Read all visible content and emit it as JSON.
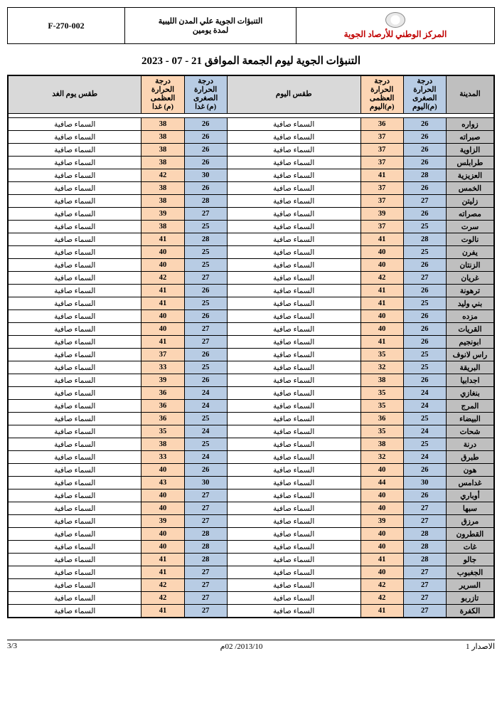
{
  "header": {
    "org_name": "المركز الوطني للأرصاد الجوية",
    "subtitle_line1": "التنبؤات الجوية علي المدن الليبية",
    "subtitle_line2": "لمدة يومين",
    "form_code": "F-270-002"
  },
  "title": "التنبؤات الجوية ليوم الجمعة  الموافق 21 - 07 - 2023",
  "columns": {
    "city": "المدينة",
    "min_today_l1": "درجة",
    "min_today_l2": "الحرارة",
    "min_today_l3": "الصغرى",
    "min_today_l4": "(م)اليوم",
    "max_today_l1": "درجة",
    "max_today_l2": "الحرارة",
    "max_today_l3": "العظمى",
    "max_today_l4": "(م)اليوم",
    "wx_today": "طقس اليوم",
    "min_tom_l1": "درجة",
    "min_tom_l2": "الحرارة",
    "min_tom_l3": "الصغرى",
    "min_tom_l4": "(م) غدا",
    "max_tom_l1": "درجة",
    "max_tom_l2": "الحرارة",
    "max_tom_l3": "العظمى",
    "max_tom_l4": "(م) غدا",
    "wx_tom": "طقس يوم الغد"
  },
  "wx_clear": "السماء صافية",
  "rows": [
    {
      "city": "زواره",
      "min_t": 26,
      "max_t": 36,
      "min_m": 26,
      "max_m": 38
    },
    {
      "city": "صبراته",
      "min_t": 26,
      "max_t": 37,
      "min_m": 26,
      "max_m": 38
    },
    {
      "city": "الزاوية",
      "min_t": 26,
      "max_t": 37,
      "min_m": 26,
      "max_m": 38
    },
    {
      "city": "طرابلس",
      "min_t": 26,
      "max_t": 37,
      "min_m": 26,
      "max_m": 38
    },
    {
      "city": "العزيزية",
      "min_t": 28,
      "max_t": 41,
      "min_m": 30,
      "max_m": 42
    },
    {
      "city": "الخمس",
      "min_t": 26,
      "max_t": 37,
      "min_m": 26,
      "max_m": 38
    },
    {
      "city": "زليتن",
      "min_t": 27,
      "max_t": 37,
      "min_m": 28,
      "max_m": 38
    },
    {
      "city": "مصراته",
      "min_t": 26,
      "max_t": 39,
      "min_m": 27,
      "max_m": 39
    },
    {
      "city": "سرت",
      "min_t": 25,
      "max_t": 37,
      "min_m": 25,
      "max_m": 38
    },
    {
      "city": "نالوت",
      "min_t": 28,
      "max_t": 41,
      "min_m": 28,
      "max_m": 41
    },
    {
      "city": "يفرن",
      "min_t": 25,
      "max_t": 40,
      "min_m": 25,
      "max_m": 40
    },
    {
      "city": "الزنتان",
      "min_t": 26,
      "max_t": 40,
      "min_m": 25,
      "max_m": 40
    },
    {
      "city": "غريان",
      "min_t": 27,
      "max_t": 42,
      "min_m": 27,
      "max_m": 42
    },
    {
      "city": "ترهونة",
      "min_t": 26,
      "max_t": 41,
      "min_m": 26,
      "max_m": 41
    },
    {
      "city": "بني وليد",
      "min_t": 25,
      "max_t": 41,
      "min_m": 25,
      "max_m": 41
    },
    {
      "city": "مزده",
      "min_t": 26,
      "max_t": 40,
      "min_m": 26,
      "max_m": 40
    },
    {
      "city": "القريات",
      "min_t": 26,
      "max_t": 40,
      "min_m": 27,
      "max_m": 40
    },
    {
      "city": "ابونجيم",
      "min_t": 26,
      "max_t": 41,
      "min_m": 27,
      "max_m": 41
    },
    {
      "city": "راس لانوف",
      "min_t": 25,
      "max_t": 35,
      "min_m": 26,
      "max_m": 37
    },
    {
      "city": "البريقة",
      "min_t": 25,
      "max_t": 32,
      "min_m": 25,
      "max_m": 33
    },
    {
      "city": "اجدابيا",
      "min_t": 26,
      "max_t": 38,
      "min_m": 26,
      "max_m": 39
    },
    {
      "city": "بنغازي",
      "min_t": 24,
      "max_t": 35,
      "min_m": 24,
      "max_m": 36
    },
    {
      "city": "المرج",
      "min_t": 24,
      "max_t": 35,
      "min_m": 24,
      "max_m": 36
    },
    {
      "city": "البيضاء",
      "min_t": 25,
      "max_t": 36,
      "min_m": 25,
      "max_m": 36
    },
    {
      "city": "شحات",
      "min_t": 24,
      "max_t": 35,
      "min_m": 24,
      "max_m": 35
    },
    {
      "city": "درنة",
      "min_t": 25,
      "max_t": 38,
      "min_m": 25,
      "max_m": 38
    },
    {
      "city": "طبرق",
      "min_t": 24,
      "max_t": 32,
      "min_m": 24,
      "max_m": 33
    },
    {
      "city": "هون",
      "min_t": 26,
      "max_t": 40,
      "min_m": 26,
      "max_m": 40
    },
    {
      "city": "غدامس",
      "min_t": 30,
      "max_t": 44,
      "min_m": 30,
      "max_m": 43
    },
    {
      "city": "أوباري",
      "min_t": 26,
      "max_t": 40,
      "min_m": 27,
      "max_m": 40
    },
    {
      "city": "سبها",
      "min_t": 27,
      "max_t": 40,
      "min_m": 27,
      "max_m": 40
    },
    {
      "city": "مرزق",
      "min_t": 27,
      "max_t": 39,
      "min_m": 27,
      "max_m": 39
    },
    {
      "city": "القطرون",
      "min_t": 28,
      "max_t": 40,
      "min_m": 28,
      "max_m": 40
    },
    {
      "city": "غات",
      "min_t": 28,
      "max_t": 40,
      "min_m": 28,
      "max_m": 40
    },
    {
      "city": "جالو",
      "min_t": 28,
      "max_t": 41,
      "min_m": 28,
      "max_m": 41
    },
    {
      "city": "الجغبوب",
      "min_t": 27,
      "max_t": 40,
      "min_m": 27,
      "max_m": 41
    },
    {
      "city": "السرير",
      "min_t": 27,
      "max_t": 42,
      "min_m": 27,
      "max_m": 42
    },
    {
      "city": "تازربو",
      "min_t": 27,
      "max_t": 42,
      "min_m": 27,
      "max_m": 42
    },
    {
      "city": "الكفرة",
      "min_t": 27,
      "max_t": 41,
      "min_m": 27,
      "max_m": 41
    }
  ],
  "footer": {
    "issue": "الاصدار 1",
    "date": "2013/10/ 02م",
    "page": "3/3"
  },
  "colors": {
    "city_bg": "#bfbfbf",
    "min_bg": "#b8cce4",
    "max_bg": "#fcd5b4",
    "header_wx_bg": "#d9d9d9",
    "org_color": "#c00000"
  }
}
